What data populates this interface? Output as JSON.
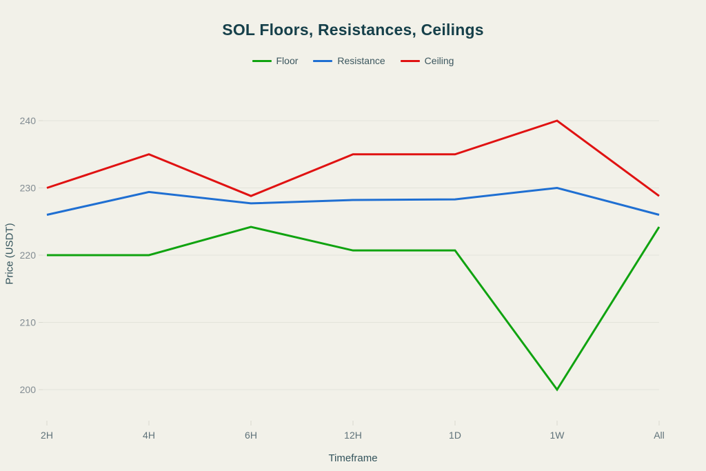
{
  "page": {
    "background_color": "#f2f1e9"
  },
  "chart_data": {
    "type": "line",
    "title": "SOL Floors, Resistances, Ceilings",
    "xlabel": "Timeframe",
    "ylabel": "Price (USDT)",
    "categories": [
      "2H",
      "4H",
      "6H",
      "12H",
      "1D",
      "1W",
      "All"
    ],
    "series": [
      {
        "name": "Floor",
        "color": "#10a310",
        "values": [
          220,
          220,
          224.2,
          220.7,
          220.7,
          200,
          224.2
        ]
      },
      {
        "name": "Resistance",
        "color": "#1f6fd2",
        "values": [
          226,
          229.4,
          227.7,
          228.2,
          228.3,
          230,
          226
        ]
      },
      {
        "name": "Ceiling",
        "color": "#e01212",
        "values": [
          230,
          235,
          228.8,
          235,
          235,
          240,
          228.8
        ]
      }
    ],
    "y_ticks": [
      200,
      210,
      220,
      230,
      240
    ],
    "ylim": [
      200,
      240
    ],
    "grid": "horizontal",
    "legend_position": "top",
    "grid_color": "#e3e3da",
    "tick_mark_color": "#d9d9d0",
    "y_tick_label_color": "#828c92",
    "x_tick_label_color": "#5f7279"
  }
}
